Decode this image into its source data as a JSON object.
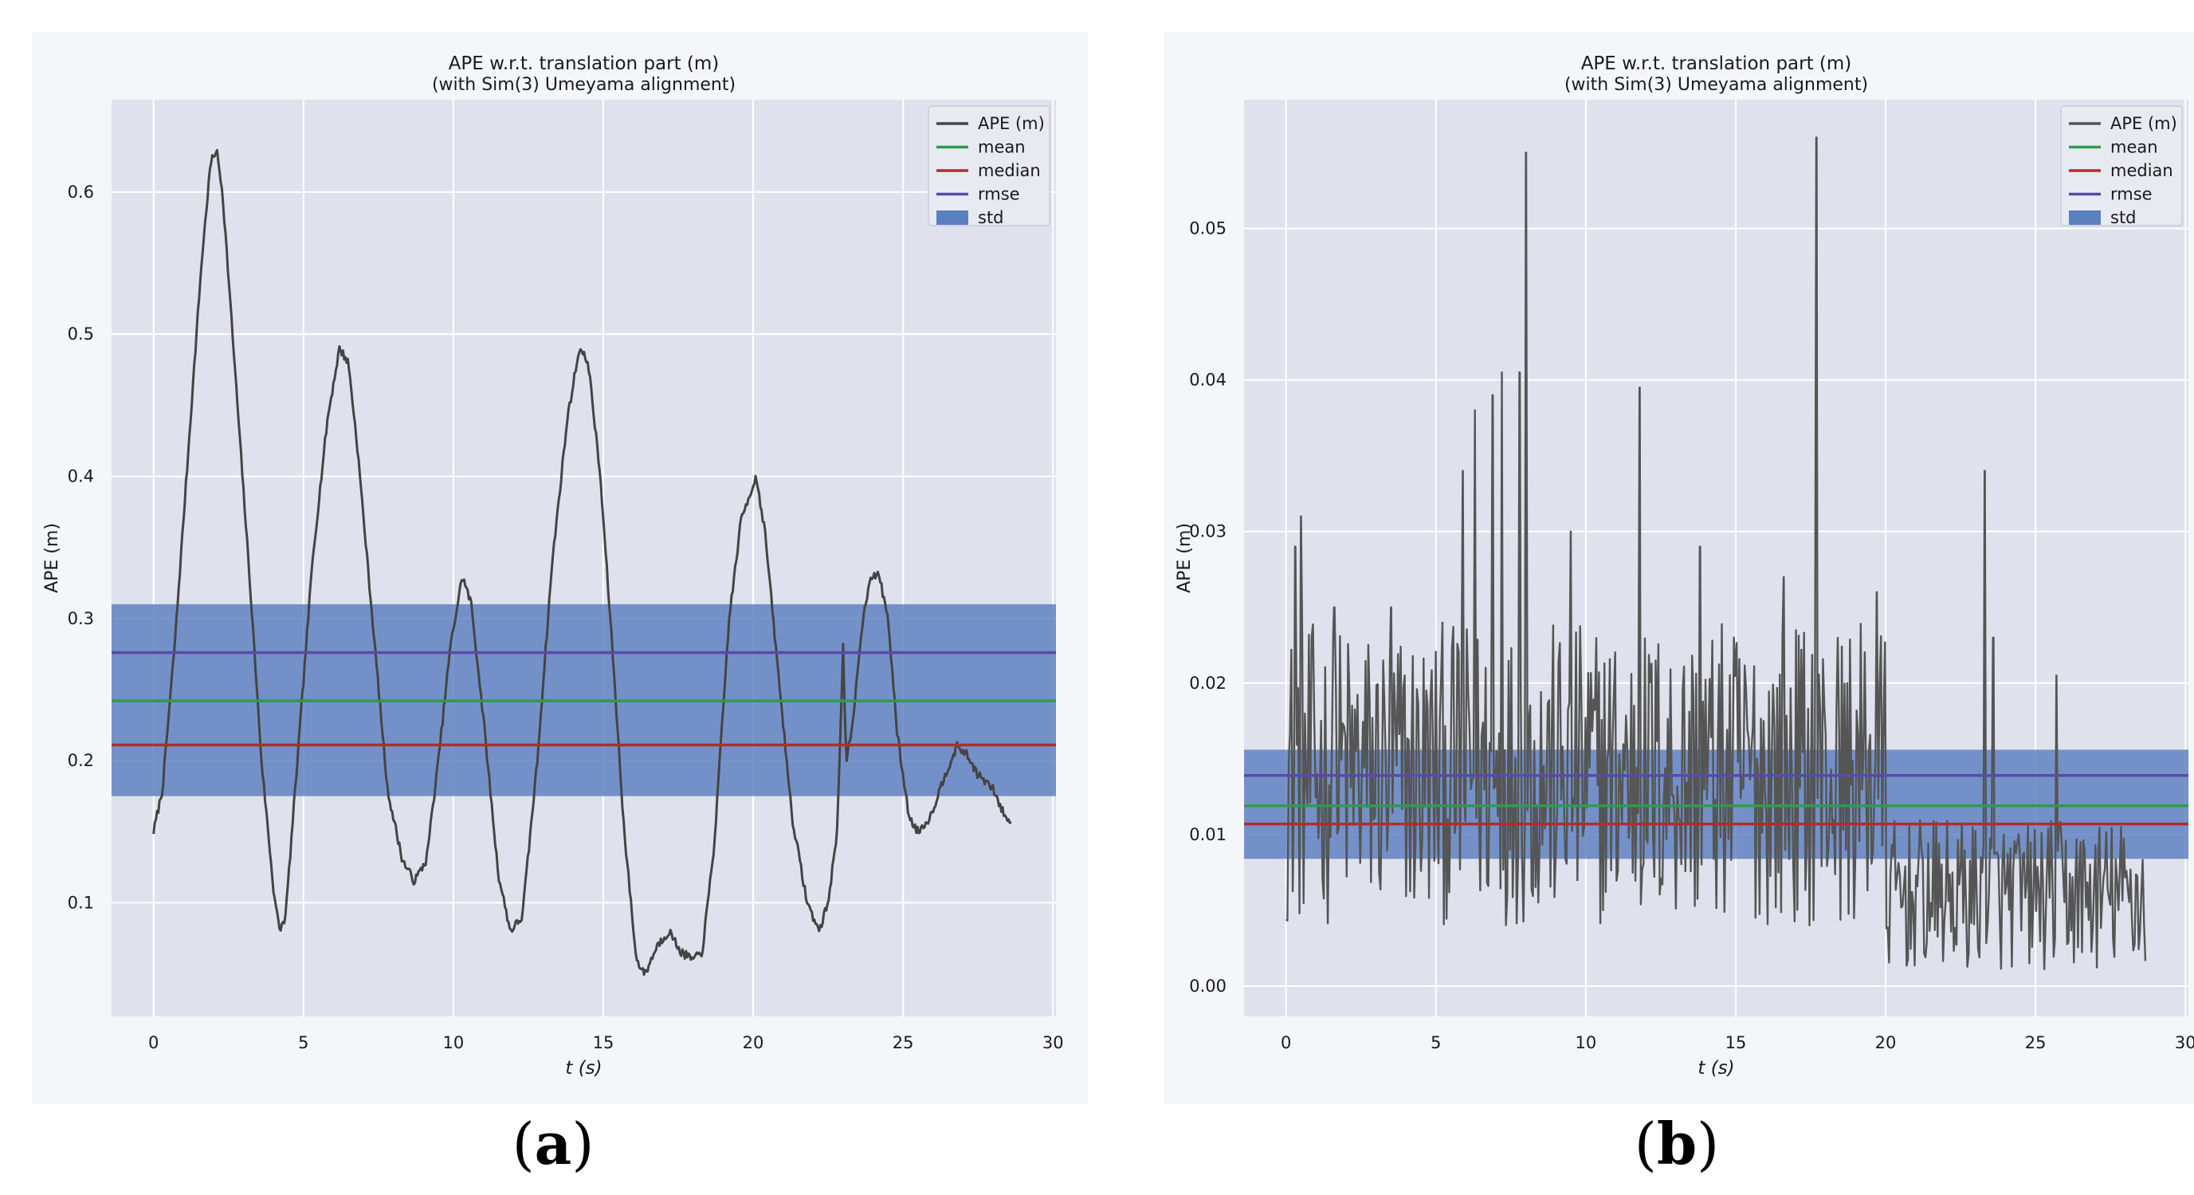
{
  "figures": [
    {
      "caption_label": "a"
    },
    {
      "caption_label": "b"
    }
  ],
  "chart_data": [
    {
      "type": "line",
      "title": "APE w.r.t. translation part (m)",
      "subtitle": "(with Sim(3) Umeyama alignment)",
      "xlabel": "t (s)",
      "ylabel": "APE (m)",
      "xlim": [
        -1.4,
        30.1
      ],
      "ylim": [
        0.02,
        0.665
      ],
      "xticks": [
        0,
        5,
        10,
        15,
        20,
        25,
        30
      ],
      "yticks": [
        0.1,
        0.2,
        0.3,
        0.4,
        0.5,
        0.6
      ],
      "grid": true,
      "legend_position": "top-right",
      "legend": [
        "APE (m)",
        "mean",
        "median",
        "rmse",
        "std"
      ],
      "series": [
        {
          "name": "APE (m)",
          "color": "#444444",
          "keypoints": [
            [
              0,
              0.15
            ],
            [
              0.3,
              0.18
            ],
            [
              0.7,
              0.28
            ],
            [
              1.2,
              0.43
            ],
            [
              1.6,
              0.55
            ],
            [
              1.9,
              0.62
            ],
            [
              2.1,
              0.63
            ],
            [
              2.3,
              0.6
            ],
            [
              2.7,
              0.48
            ],
            [
              3.2,
              0.33
            ],
            [
              3.6,
              0.2
            ],
            [
              4.0,
              0.11
            ],
            [
              4.2,
              0.08
            ],
            [
              4.4,
              0.09
            ],
            [
              4.8,
              0.2
            ],
            [
              5.3,
              0.34
            ],
            [
              5.8,
              0.44
            ],
            [
              6.2,
              0.49
            ],
            [
              6.5,
              0.48
            ],
            [
              6.8,
              0.42
            ],
            [
              7.3,
              0.3
            ],
            [
              7.8,
              0.18
            ],
            [
              8.3,
              0.13
            ],
            [
              8.7,
              0.115
            ],
            [
              9.1,
              0.13
            ],
            [
              9.5,
              0.2
            ],
            [
              9.9,
              0.28
            ],
            [
              10.3,
              0.33
            ],
            [
              10.6,
              0.31
            ],
            [
              11.0,
              0.23
            ],
            [
              11.5,
              0.12
            ],
            [
              11.9,
              0.08
            ],
            [
              12.3,
              0.09
            ],
            [
              12.8,
              0.2
            ],
            [
              13.3,
              0.34
            ],
            [
              13.8,
              0.44
            ],
            [
              14.2,
              0.49
            ],
            [
              14.5,
              0.48
            ],
            [
              14.9,
              0.4
            ],
            [
              15.3,
              0.28
            ],
            [
              15.7,
              0.15
            ],
            [
              16.1,
              0.06
            ],
            [
              16.4,
              0.05
            ],
            [
              16.8,
              0.07
            ],
            [
              17.2,
              0.08
            ],
            [
              17.6,
              0.065
            ],
            [
              18.0,
              0.06
            ],
            [
              18.3,
              0.065
            ],
            [
              18.7,
              0.14
            ],
            [
              19.2,
              0.3
            ],
            [
              19.6,
              0.37
            ],
            [
              20.1,
              0.4
            ],
            [
              20.4,
              0.36
            ],
            [
              20.8,
              0.27
            ],
            [
              21.3,
              0.16
            ],
            [
              21.8,
              0.1
            ],
            [
              22.2,
              0.08
            ],
            [
              22.5,
              0.1
            ],
            [
              22.8,
              0.15
            ],
            [
              23.0,
              0.28
            ],
            [
              23.1,
              0.2
            ],
            [
              23.3,
              0.22
            ],
            [
              23.6,
              0.29
            ],
            [
              23.9,
              0.33
            ],
            [
              24.2,
              0.33
            ],
            [
              24.5,
              0.3
            ],
            [
              24.8,
              0.22
            ],
            [
              25.2,
              0.16
            ],
            [
              25.5,
              0.15
            ],
            [
              25.9,
              0.16
            ],
            [
              26.4,
              0.19
            ],
            [
              26.8,
              0.21
            ],
            [
              27.1,
              0.205
            ],
            [
              27.5,
              0.19
            ],
            [
              28.0,
              0.18
            ],
            [
              28.3,
              0.165
            ],
            [
              28.6,
              0.155
            ]
          ]
        },
        {
          "name": "mean",
          "value": 0.242,
          "color": "#2e9a4f"
        },
        {
          "name": "median",
          "value": 0.211,
          "color": "#b32c2c"
        },
        {
          "name": "rmse",
          "value": 0.276,
          "color": "#5a4aa6"
        },
        {
          "name": "std",
          "band": [
            0.175,
            0.31
          ],
          "color": "#5b7fbf"
        }
      ]
    },
    {
      "type": "line",
      "title": "APE w.r.t. translation part (m)",
      "subtitle": "(with Sim(3) Umeyama alignment)",
      "xlabel": "t (s)",
      "ylabel": "APE (m)",
      "xlim": [
        -1.4,
        30.1
      ],
      "ylim": [
        -0.002,
        0.0585
      ],
      "xticks": [
        0,
        5,
        10,
        15,
        20,
        25,
        30
      ],
      "yticks": [
        0.0,
        0.01,
        0.02,
        0.03,
        0.04,
        0.05
      ],
      "grid": true,
      "legend_position": "top-right",
      "legend": [
        "APE (m)",
        "mean",
        "median",
        "rmse",
        "std"
      ],
      "series": [
        {
          "name": "APE (m)",
          "color": "#555555",
          "peaks": [
            [
              0.3,
              0.029
            ],
            [
              0.5,
              0.031
            ],
            [
              1.6,
              0.025
            ],
            [
              3.5,
              0.025
            ],
            [
              5.9,
              0.034
            ],
            [
              6.3,
              0.038
            ],
            [
              6.9,
              0.039
            ],
            [
              7.2,
              0.0405
            ],
            [
              7.8,
              0.0405
            ],
            [
              8.0,
              0.055
            ],
            [
              9.5,
              0.03
            ],
            [
              11.8,
              0.0395
            ],
            [
              13.8,
              0.029
            ],
            [
              16.6,
              0.027
            ],
            [
              17.7,
              0.056
            ],
            [
              19.7,
              0.026
            ],
            [
              23.3,
              0.034
            ],
            [
              23.6,
              0.023
            ],
            [
              25.7,
              0.0205
            ]
          ],
          "base_segments": [
            [
              0,
              20,
              0.004,
              0.024
            ],
            [
              20,
              28.7,
              0.001,
              0.011
            ]
          ]
        },
        {
          "name": "mean",
          "value": 0.0119,
          "color": "#2e9a4f"
        },
        {
          "name": "median",
          "value": 0.0107,
          "color": "#b32c2c"
        },
        {
          "name": "rmse",
          "value": 0.0139,
          "color": "#5a4aa6"
        },
        {
          "name": "std",
          "band": [
            0.0084,
            0.0156
          ],
          "color": "#5b7fbf"
        }
      ]
    }
  ]
}
